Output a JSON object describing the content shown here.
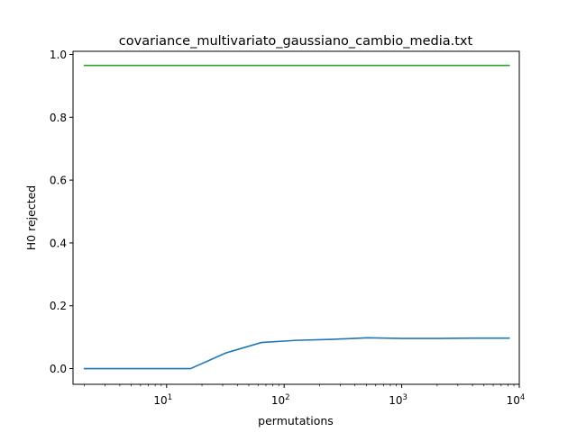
{
  "chart_data": {
    "type": "line",
    "title": "covariance_multivariato_gaussiano_cambio_media.txt",
    "xlabel": "permutations",
    "ylabel": "H0 rejected",
    "xscale": "log",
    "xlim": [
      1.6,
      10000
    ],
    "ylim": [
      -0.05,
      1.01
    ],
    "x_ticks": [
      {
        "value": 10,
        "base": "10",
        "exp": "1"
      },
      {
        "value": 100,
        "base": "10",
        "exp": "2"
      },
      {
        "value": 1000,
        "base": "10",
        "exp": "3"
      },
      {
        "value": 10000,
        "base": "10",
        "exp": "4"
      }
    ],
    "y_ticks": [
      {
        "value": 0.0,
        "label": "0.0"
      },
      {
        "value": 0.2,
        "label": "0.2"
      },
      {
        "value": 0.4,
        "label": "0.4"
      },
      {
        "value": 0.6,
        "label": "0.6"
      },
      {
        "value": 0.8,
        "label": "0.8"
      },
      {
        "value": 1.0,
        "label": "1.0"
      }
    ],
    "grid": false,
    "legend": "none",
    "series": [
      {
        "color": "#1f77b4",
        "x": [
          2,
          4,
          8,
          16,
          32,
          64,
          128,
          256,
          512,
          1024,
          2048,
          4096,
          8192
        ],
        "y": [
          0.0,
          0.0,
          0.0,
          0.0,
          0.05,
          0.083,
          0.09,
          0.093,
          0.098,
          0.096,
          0.096,
          0.097,
          0.097
        ]
      },
      {
        "color": "#2ca02c",
        "x": [
          2,
          4,
          8,
          16,
          32,
          64,
          128,
          256,
          512,
          1024,
          2048,
          4096,
          8192
        ],
        "y": [
          0.965,
          0.965,
          0.965,
          0.965,
          0.965,
          0.965,
          0.965,
          0.965,
          0.965,
          0.965,
          0.965,
          0.965,
          0.965
        ]
      }
    ]
  }
}
